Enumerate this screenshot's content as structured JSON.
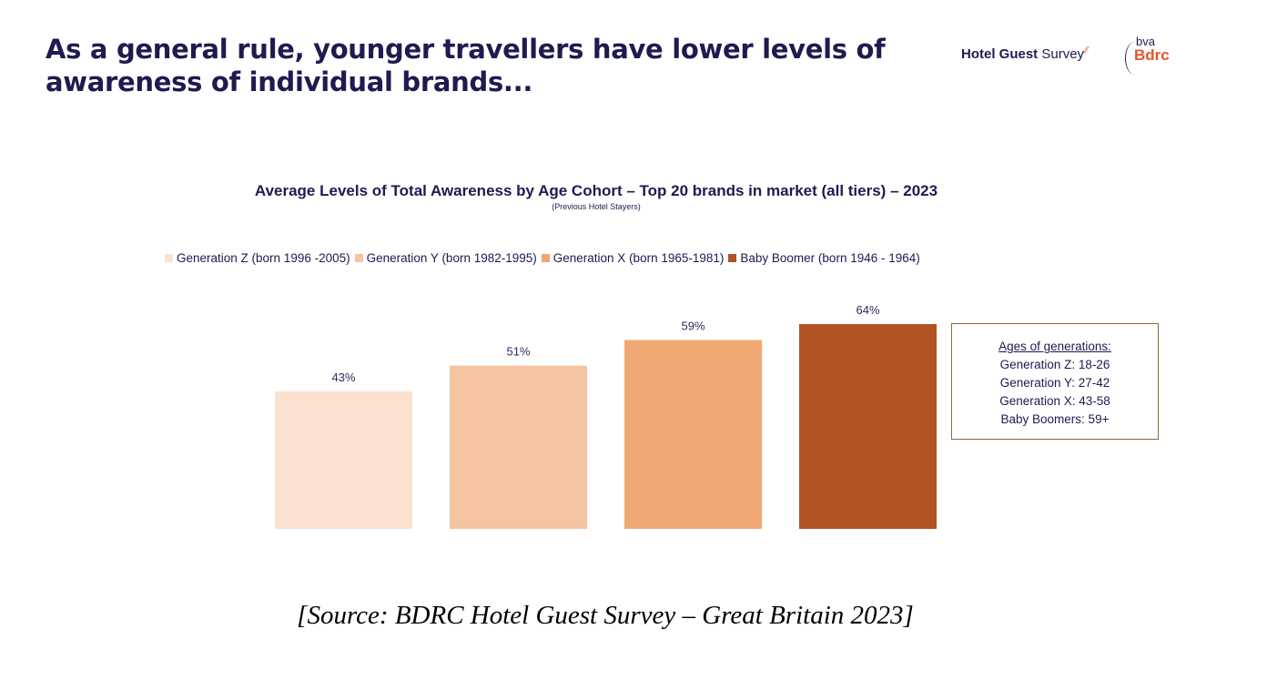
{
  "headline": "As a general rule, younger travellers have lower levels of awareness of individual brands...",
  "logos": {
    "hotel_guest_survey_bold": "Hotel Guest",
    "hotel_guest_survey_regular": "Survey",
    "spark": "⁄",
    "bva": "bva",
    "bdrc": "Bdrc"
  },
  "chart_data": {
    "type": "bar",
    "title": "Average Levels of Total Awareness by Age Cohort – Top 20 brands in market (all tiers) – 2023",
    "subtitle": "(Previous Hotel Stayers)",
    "xlabel": "",
    "ylabel": "",
    "ylim": [
      0,
      70
    ],
    "grid": false,
    "legend_position": "top",
    "categories": [
      "Generation Z (born 1996 -2005)",
      "Generation Y (born 1982-1995)",
      "Generation X (born 1965-1981)",
      "Baby Boomer (born 1946 - 1964)"
    ],
    "values": [
      43,
      51,
      59,
      64
    ],
    "data_labels": [
      "43%",
      "51%",
      "59%",
      "64%"
    ],
    "colors": [
      "#fae1d0",
      "#f5c4a0",
      "#f0a872",
      "#b05421"
    ],
    "unit": "%"
  },
  "note": {
    "title": "Ages of generations:",
    "lines": [
      "Generation Z: 18-26",
      "Generation Y: 27-42",
      "Generation X: 43-58",
      "Baby Boomers: 59+"
    ]
  },
  "source": "[Source: BDRC Hotel Guest Survey – Great Britain 2023]"
}
